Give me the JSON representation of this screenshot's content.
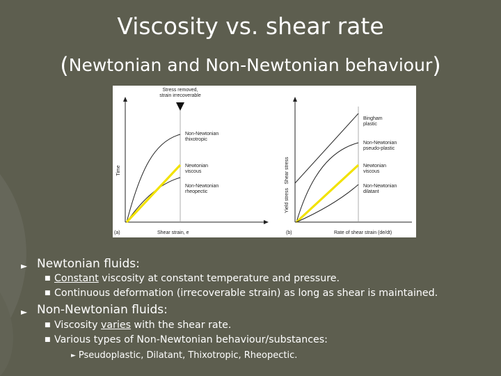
{
  "slide": {
    "title": "Viscosity vs. shear rate",
    "subtitle_open": "(",
    "subtitle_text": "Newtonian and Non-Newtonian behaviour",
    "subtitle_close": ")"
  },
  "figure": {
    "left": {
      "top_label_1": "Stress removed,",
      "top_label_2": "strain irrecoverable",
      "y_axis_label": "Time",
      "x_axis_label": "Shear strain, e",
      "panel_label": "(a)",
      "curves": [
        {
          "line1": "Non-Newtonian",
          "line2": "thixotropic"
        },
        {
          "line1": "Newtonian",
          "line2": "viscous"
        },
        {
          "line1": "Non-Newtonian",
          "line2": "rheopectic"
        }
      ]
    },
    "right": {
      "y_axis_label": "Shear stress",
      "yield_label": "Yield stress",
      "x_axis_label": "Rate of shear strain (de/dt)",
      "panel_label": "(b)",
      "curves": [
        {
          "line1": "Bingham",
          "line2": "plastic"
        },
        {
          "line1": "Non-Newtonian",
          "line2": "pseudo-plastic"
        },
        {
          "line1": "Newtonian",
          "line2": "viscous"
        },
        {
          "line1": "Non-Newtonian",
          "line2": "dilatant"
        }
      ]
    },
    "highlight_color": "#f2e200"
  },
  "bullets": {
    "newtonian": {
      "heading": "Newtonian fluids",
      "heading_colon": ":",
      "items": [
        {
          "underlined": "Constant",
          "rest": " viscosity at constant temperature and pressure."
        },
        {
          "underlined": "",
          "rest": "Continuous deformation (irrecoverable strain) as long as shear is maintained."
        }
      ]
    },
    "non_newtonian": {
      "heading": "Non-Newtonian fluids:",
      "items": [
        {
          "before": "Viscosity ",
          "underlined": "varies",
          "rest": " with the shear rate."
        },
        {
          "before": "",
          "underlined": "",
          "rest": "Various types of Non-Newtonian behaviour/substances:"
        }
      ],
      "sub": "Pseudoplastic, Dilatant, Thixotropic, Rheopectic."
    },
    "arrow_glyph": "►",
    "square_glyph": "■"
  },
  "colors": {
    "background": "#5d5e4f",
    "text": "#ffffff"
  }
}
